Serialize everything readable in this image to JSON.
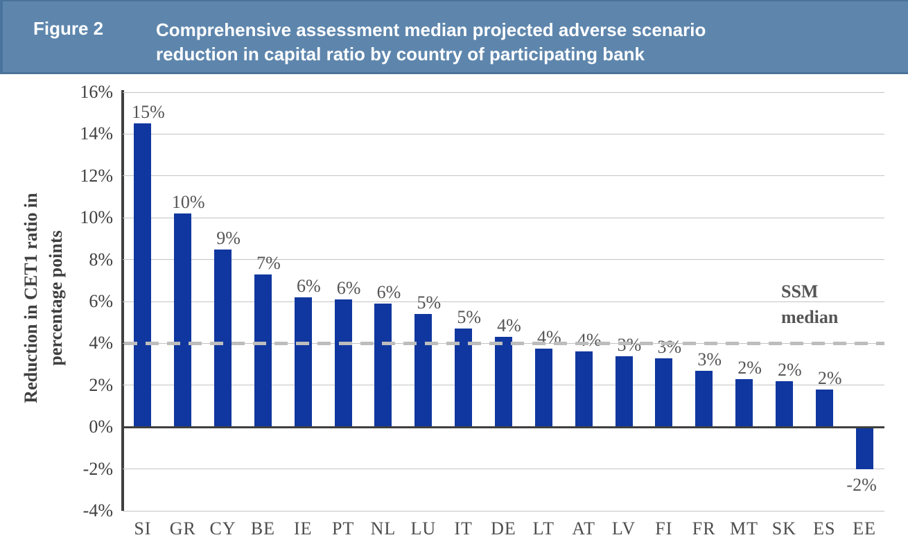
{
  "header": {
    "figure_label": "Figure 2",
    "title_line1": "Comprehensive assessment median projected adverse scenario",
    "title_line2": "reduction in capital ratio by country of participating bank"
  },
  "colors": {
    "header_band": "#5e86ad",
    "header_band_edge": "#4a7399",
    "bar": "#10379f",
    "gridline": "#c3c3c3",
    "axis": "#3f3f3f",
    "median_dash": "#bdbdbd",
    "value_label_text": "#555555",
    "tick_text": "#3f3f3f",
    "header_text": "#ffffff"
  },
  "chart_data": {
    "type": "bar",
    "title": "Comprehensive assessment median projected adverse scenario reduction in capital ratio by country of participating bank",
    "categories": [
      "SI",
      "GR",
      "CY",
      "BE",
      "IE",
      "PT",
      "NL",
      "LU",
      "IT",
      "DE",
      "LT",
      "AT",
      "LV",
      "FI",
      "FR",
      "MT",
      "SK",
      "ES",
      "EE"
    ],
    "values": [
      14.5,
      10.2,
      8.5,
      7.3,
      6.2,
      6.1,
      5.9,
      5.4,
      4.7,
      4.3,
      3.75,
      3.6,
      3.4,
      3.3,
      2.7,
      2.3,
      2.2,
      1.8,
      -2.0
    ],
    "bar_labels": [
      "15%",
      "10%",
      "9%",
      "7%",
      "6%",
      "6%",
      "6%",
      "5%",
      "5%",
      "4%",
      "4%",
      "4%",
      "3%",
      "3%",
      "3%",
      "2%",
      "2%",
      "2%",
      "-2%"
    ],
    "xlabel": "",
    "ylabel": "Reduction in CET1 ratio in percentage points",
    "ylabel_line1": "Reduction in CET1 ratio in",
    "ylabel_line2": "percentage points",
    "ylim": [
      -4,
      16
    ],
    "ytick_values": [
      16,
      14,
      12,
      10,
      8,
      6,
      4,
      2,
      0,
      -2,
      -4
    ],
    "ytick_labels": [
      "16%",
      "14%",
      "12%",
      "10%",
      "8%",
      "6%",
      "4%",
      "2%",
      "0%",
      "-2%",
      "-4%"
    ],
    "grid": true,
    "legend": "none",
    "median_line": {
      "value": 4,
      "style": "dashed",
      "label": "SSM median",
      "label_line1": "SSM",
      "label_line2": "median"
    }
  }
}
